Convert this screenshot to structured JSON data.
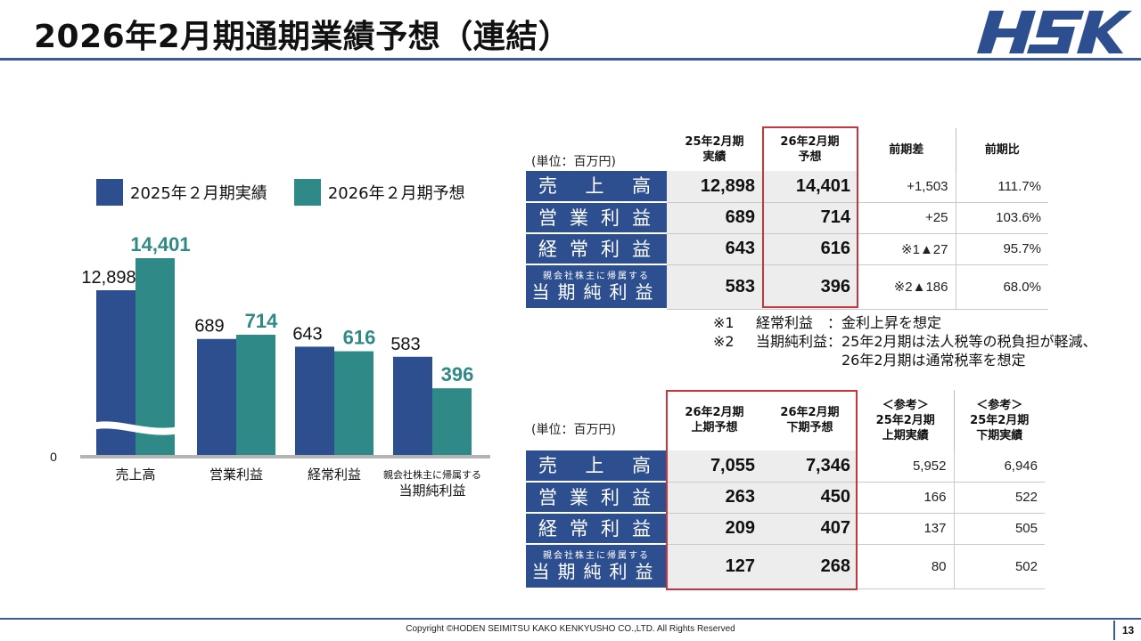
{
  "page": {
    "title": "2026年2月期通期業績予想（連結）",
    "logo_text": "HSK",
    "copyright": "Copyright ©HODEN SEIMITSU KAKO KENKYUSHO CO.,LTD. All Rights Reserved",
    "page_number": "13"
  },
  "colors": {
    "blue": "#2e4f8f",
    "teal": "#2f8a87",
    "accent_red": "#c8353d"
  },
  "chart_data": {
    "type": "bar",
    "categories": [
      "売上高",
      "営業利益",
      "経常利益",
      "当期純利益"
    ],
    "category_prefix": [
      "",
      "",
      "",
      "親会社株主に帰属する"
    ],
    "series": [
      {
        "name": "2025年２月期実績",
        "values": [
          12898,
          689,
          643,
          583
        ],
        "labels": [
          "12,898",
          "689",
          "643",
          "583"
        ]
      },
      {
        "name": "2026年２月期予想",
        "values": [
          14401,
          714,
          616,
          396
        ],
        "labels": [
          "14,401",
          "714",
          "616",
          "396"
        ]
      }
    ],
    "zero_label": "0",
    "axis_break": true
  },
  "table1": {
    "unit": "(単位：百万円)",
    "headers": [
      {
        "l1": "25年2月期",
        "l2": "実績"
      },
      {
        "l1": "26年2月期",
        "l2": "予想"
      },
      {
        "l1": "前期差",
        "l2": ""
      },
      {
        "l1": "前期比",
        "l2": ""
      }
    ],
    "rows": [
      {
        "label": "売上高",
        "prefix": "",
        "c1": "12,898",
        "c2": "14,401",
        "c3": "+1,503",
        "c4": "111.7%"
      },
      {
        "label": "営業利益",
        "prefix": "",
        "c1": "689",
        "c2": "714",
        "c3": "+25",
        "c4": "103.6%"
      },
      {
        "label": "経常利益",
        "prefix": "",
        "c1": "643",
        "c2": "616",
        "c3": "※1▲27",
        "c4": "95.7%"
      },
      {
        "label": "当期純利益",
        "prefix": "親会社株主に帰属する",
        "c1": "583",
        "c2": "396",
        "c3": "※2▲186",
        "c4": "68.0%"
      }
    ]
  },
  "notes": [
    {
      "key": "※1",
      "text": "経常利益　：金利上昇を想定"
    },
    {
      "key": "※2",
      "text": "当期純利益：25年2月期は法人税等の税負担が軽減、"
    },
    {
      "key": "",
      "text": "　　　　　　26年2月期は通常税率を想定"
    }
  ],
  "table2": {
    "unit": "(単位：百万円)",
    "headers": [
      {
        "l0": "",
        "l1": "26年2月期",
        "l2": "上期予想"
      },
      {
        "l0": "",
        "l1": "26年2月期",
        "l2": "下期予想"
      },
      {
        "l0": "＜参考＞",
        "l1": "25年2月期",
        "l2": "上期実績"
      },
      {
        "l0": "＜参考＞",
        "l1": "25年2月期",
        "l2": "下期実績"
      }
    ],
    "rows": [
      {
        "label": "売上高",
        "prefix": "",
        "c1": "7,055",
        "c2": "7,346",
        "c3": "5,952",
        "c4": "6,946"
      },
      {
        "label": "営業利益",
        "prefix": "",
        "c1": "263",
        "c2": "450",
        "c3": "166",
        "c4": "522"
      },
      {
        "label": "経常利益",
        "prefix": "",
        "c1": "209",
        "c2": "407",
        "c3": "137",
        "c4": "505"
      },
      {
        "label": "当期純利益",
        "prefix": "親会社株主に帰属する",
        "c1": "127",
        "c2": "268",
        "c3": "80",
        "c4": "502"
      }
    ]
  }
}
